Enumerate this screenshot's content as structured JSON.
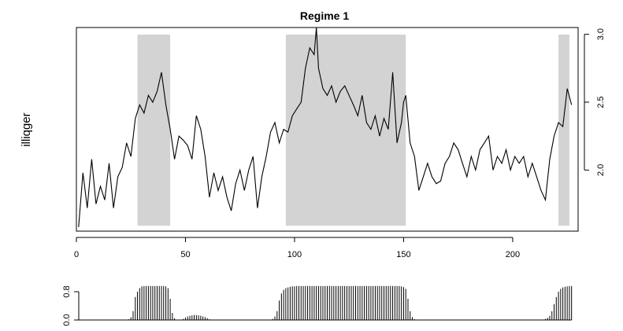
{
  "chart_data": [
    {
      "type": "line",
      "title": "Regime 1",
      "ylabel": "illiqger",
      "xlabel": "",
      "xlim": [
        0,
        230
      ],
      "ylim": [
        1.55,
        3.05
      ],
      "x_ticks": [
        0,
        50,
        100,
        150,
        200
      ],
      "x_tick_labels": [
        "0",
        "50",
        "100",
        "150",
        "200"
      ],
      "y_ticks": [
        2.0,
        2.5,
        3.0
      ],
      "y_tick_labels": [
        "2.0",
        "2.5",
        "3.0"
      ],
      "y_axis_side": "right",
      "shaded_regions": [
        [
          28,
          43
        ],
        [
          96,
          151
        ],
        [
          221,
          226
        ]
      ],
      "shade_color": "#d3d3d3",
      "line_color": "#000000",
      "series": [
        {
          "x": [
            1,
            3,
            5,
            7,
            9,
            11,
            13,
            15,
            17,
            19,
            21,
            23,
            25,
            27,
            29,
            31,
            33,
            35,
            37,
            39,
            41,
            43,
            45,
            47,
            49,
            51,
            53,
            55,
            57,
            59,
            61,
            63,
            65,
            67,
            69,
            71,
            73,
            75,
            77,
            79,
            81,
            83,
            85,
            87,
            89,
            91,
            93,
            95,
            97,
            99,
            101,
            103,
            105,
            107,
            109,
            110,
            111,
            113,
            115,
            117,
            119,
            121,
            123,
            125,
            127,
            129,
            131,
            133,
            135,
            137,
            139,
            141,
            143,
            145,
            147,
            149,
            150,
            151,
            153,
            155,
            157,
            159,
            161,
            163,
            165,
            167,
            169,
            171,
            173,
            175,
            177,
            179,
            181,
            183,
            185,
            187,
            189,
            191,
            193,
            195,
            197,
            199,
            201,
            203,
            205,
            207,
            209,
            211,
            213,
            215,
            217,
            219,
            221,
            223,
            225,
            227
          ],
          "values": [
            1.58,
            1.98,
            1.72,
            2.08,
            1.75,
            1.88,
            1.78,
            2.05,
            1.72,
            1.95,
            2.02,
            2.2,
            2.1,
            2.38,
            2.48,
            2.42,
            2.55,
            2.5,
            2.58,
            2.72,
            2.48,
            2.3,
            2.08,
            2.25,
            2.22,
            2.18,
            2.08,
            2.4,
            2.3,
            2.1,
            1.8,
            1.98,
            1.85,
            1.95,
            1.8,
            1.7,
            1.9,
            2.0,
            1.85,
            2.0,
            2.1,
            1.72,
            1.95,
            2.1,
            2.28,
            2.35,
            2.2,
            2.3,
            2.28,
            2.4,
            2.45,
            2.5,
            2.75,
            2.9,
            2.85,
            3.05,
            2.75,
            2.6,
            2.55,
            2.62,
            2.5,
            2.58,
            2.62,
            2.55,
            2.48,
            2.4,
            2.55,
            2.35,
            2.3,
            2.4,
            2.25,
            2.38,
            2.3,
            2.72,
            2.2,
            2.35,
            2.5,
            2.55,
            2.2,
            2.1,
            1.85,
            1.95,
            2.05,
            1.95,
            1.9,
            1.92,
            2.05,
            2.1,
            2.2,
            2.15,
            2.05,
            1.95,
            2.1,
            2.0,
            2.15,
            2.2,
            2.25,
            2.0,
            2.1,
            2.05,
            2.15,
            2.0,
            2.1,
            2.05,
            2.1,
            1.95,
            2.05,
            1.95,
            1.85,
            1.78,
            2.08,
            2.25,
            2.35,
            2.32,
            2.6,
            2.48
          ]
        }
      ]
    },
    {
      "type": "bar",
      "title": "",
      "xlabel": "",
      "ylabel": "",
      "xlim": [
        0,
        230
      ],
      "ylim": [
        0,
        1
      ],
      "y_ticks": [
        0.0,
        0.8
      ],
      "y_tick_labels": [
        "0.0",
        "0.8"
      ],
      "bar_color": "#000000",
      "series": [
        {
          "x": [
            24,
            25,
            26,
            27,
            28,
            29,
            30,
            31,
            32,
            33,
            34,
            35,
            36,
            37,
            38,
            39,
            40,
            41,
            42,
            43,
            44,
            45,
            49,
            50,
            51,
            52,
            53,
            54,
            55,
            56,
            57,
            58,
            59,
            60,
            61,
            90,
            91,
            92,
            93,
            94,
            95,
            96,
            97,
            98,
            99,
            100,
            101,
            102,
            103,
            104,
            105,
            106,
            107,
            108,
            109,
            110,
            111,
            112,
            113,
            114,
            115,
            116,
            117,
            118,
            119,
            120,
            121,
            122,
            123,
            124,
            125,
            126,
            127,
            128,
            129,
            130,
            131,
            132,
            133,
            134,
            135,
            136,
            137,
            138,
            139,
            140,
            141,
            142,
            143,
            144,
            145,
            146,
            147,
            148,
            149,
            150,
            151,
            152,
            153,
            154,
            155,
            170,
            175,
            180,
            185,
            190,
            195,
            200,
            205,
            210,
            215,
            216,
            217,
            218,
            219,
            220,
            221,
            222,
            223,
            224,
            225,
            226,
            227
          ],
          "values": [
            0.02,
            0.08,
            0.25,
            0.65,
            0.8,
            0.9,
            0.95,
            0.96,
            0.96,
            0.96,
            0.96,
            0.96,
            0.96,
            0.96,
            0.96,
            0.96,
            0.96,
            0.95,
            0.9,
            0.6,
            0.2,
            0.05,
            0.03,
            0.07,
            0.1,
            0.12,
            0.13,
            0.14,
            0.14,
            0.13,
            0.12,
            0.1,
            0.08,
            0.05,
            0.02,
            0.03,
            0.1,
            0.25,
            0.55,
            0.75,
            0.85,
            0.9,
            0.92,
            0.94,
            0.95,
            0.95,
            0.96,
            0.96,
            0.96,
            0.96,
            0.96,
            0.96,
            0.96,
            0.96,
            0.96,
            0.96,
            0.96,
            0.96,
            0.96,
            0.96,
            0.96,
            0.96,
            0.96,
            0.96,
            0.96,
            0.96,
            0.96,
            0.96,
            0.96,
            0.96,
            0.96,
            0.96,
            0.96,
            0.96,
            0.96,
            0.96,
            0.96,
            0.96,
            0.96,
            0.96,
            0.96,
            0.96,
            0.96,
            0.96,
            0.96,
            0.96,
            0.96,
            0.96,
            0.96,
            0.96,
            0.96,
            0.96,
            0.96,
            0.96,
            0.95,
            0.93,
            0.88,
            0.6,
            0.25,
            0.08,
            0.02,
            0.01,
            0.01,
            0.01,
            0.01,
            0.01,
            0.01,
            0.01,
            0.01,
            0.01,
            0.03,
            0.06,
            0.12,
            0.25,
            0.45,
            0.65,
            0.8,
            0.88,
            0.92,
            0.94,
            0.95,
            0.96,
            0.96
          ]
        }
      ]
    }
  ]
}
